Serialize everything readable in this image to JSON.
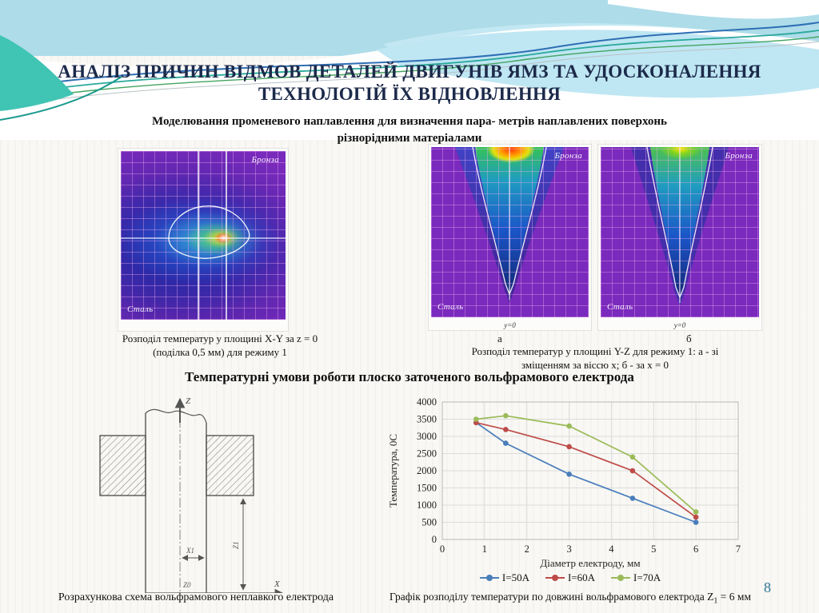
{
  "header": {
    "title_line1": "АНАЛІЗ ПРИЧИН ВІДМОВ ДЕТАЛЕЙ ДВИГУНІВ ЯМЗ ТА УДОСКОНАЛЕННЯ",
    "title_line2": "ТЕХНОЛОГІЙ ЇХ ВІДНОВЛЕННЯ",
    "subtitle_line1": "Моделювання променевого наплавлення для визначення пара- метрів наплавлених поверхонь",
    "subtitle_line2": "різнорідними матеріалами"
  },
  "section1": {
    "heatmap_xy": {
      "material_top": "Бронза",
      "material_bottom": "Сталь",
      "caption_line1": "Розподіл температур у площині X-Y за z = 0",
      "caption_line2": "(поділка 0,5 мм) для режиму 1"
    },
    "heatmap_yz_a": {
      "marker": "а",
      "material_top": "Бронза",
      "material_bottom": "Сталь",
      "axis_note": "y=0"
    },
    "heatmap_yz_b": {
      "marker": "б",
      "material_top": "Бронза",
      "material_bottom": "Сталь",
      "axis_note": "y=0"
    },
    "yz_caption_line1": "Розподіл температур у площині Y-Z для режиму 1: а - зі",
    "yz_caption_line2": "зміщенням за віссю x; б - за x = 0"
  },
  "section2": {
    "title": "Температурні умови роботи плоско заточеного вольфрамового електрода",
    "schematic": {
      "caption": "Розрахункова схема вольфрамового неплавкого електрода",
      "labels": {
        "z_axis": "Z",
        "x_axis": "X",
        "dim_x1": "X1",
        "dim_z1": "Z1",
        "z0": "Z0"
      }
    },
    "chart_caption": {
      "prefix": "Графік розподілу температури по довжині вольфрамового електрода Z",
      "sub": "1",
      "suffix": " = 6 мм"
    }
  },
  "page_number": "8",
  "colors": {
    "series_blue": "#4a7ebb",
    "series_red": "#be4b48",
    "series_green": "#9bbb59",
    "heatmap_purple": "#7a2abc",
    "page_number_teal": "#2d7396"
  },
  "chart_data": {
    "type": "line",
    "x": [
      0.8,
      1.5,
      3,
      4.5,
      6
    ],
    "series": [
      {
        "name": "I=50A",
        "color": "#4a7ebb",
        "values": [
          3400,
          2800,
          1900,
          1200,
          500
        ]
      },
      {
        "name": "I=60A",
        "color": "#be4b48",
        "values": [
          3400,
          3200,
          2700,
          2000,
          650
        ]
      },
      {
        "name": "I=70A",
        "color": "#9bbb59",
        "values": [
          3500,
          3600,
          3300,
          2400,
          800
        ]
      }
    ],
    "xlabel": "Діаметр електроду, мм",
    "ylabel": "Температура, 0С",
    "xlim": [
      0,
      7
    ],
    "ylim": [
      0,
      4000
    ],
    "x_ticks": [
      0,
      1,
      2,
      3,
      4,
      5,
      6,
      7
    ],
    "y_ticks": [
      0,
      500,
      1000,
      1500,
      2000,
      2500,
      3000,
      3500,
      4000
    ],
    "grid": true,
    "legend_position": "bottom"
  }
}
